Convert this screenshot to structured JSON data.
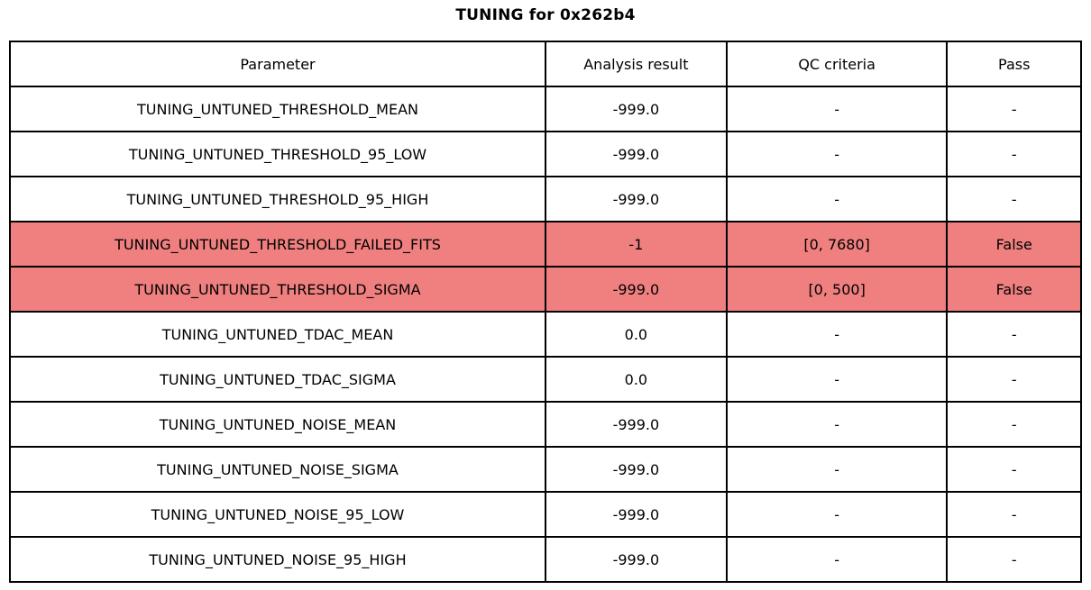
{
  "chart_data": {
    "type": "table",
    "title": "TUNING for 0x262b4",
    "columns": [
      "Parameter",
      "Analysis result",
      "QC criteria",
      "Pass"
    ],
    "rows": [
      {
        "param": "TUNING_UNTUNED_THRESHOLD_MEAN",
        "result": "-999.0",
        "qc": "-",
        "pass": "-",
        "highlight": false
      },
      {
        "param": "TUNING_UNTUNED_THRESHOLD_95_LOW",
        "result": "-999.0",
        "qc": "-",
        "pass": "-",
        "highlight": false
      },
      {
        "param": "TUNING_UNTUNED_THRESHOLD_95_HIGH",
        "result": "-999.0",
        "qc": "-",
        "pass": "-",
        "highlight": false
      },
      {
        "param": "TUNING_UNTUNED_THRESHOLD_FAILED_FITS",
        "result": "-1",
        "qc": "[0, 7680]",
        "pass": "False",
        "highlight": true
      },
      {
        "param": "TUNING_UNTUNED_THRESHOLD_SIGMA",
        "result": "-999.0",
        "qc": "[0, 500]",
        "pass": "False",
        "highlight": true
      },
      {
        "param": "TUNING_UNTUNED_TDAC_MEAN",
        "result": "0.0",
        "qc": "-",
        "pass": "-",
        "highlight": false
      },
      {
        "param": "TUNING_UNTUNED_TDAC_SIGMA",
        "result": "0.0",
        "qc": "-",
        "pass": "-",
        "highlight": false
      },
      {
        "param": "TUNING_UNTUNED_NOISE_MEAN",
        "result": "-999.0",
        "qc": "-",
        "pass": "-",
        "highlight": false
      },
      {
        "param": "TUNING_UNTUNED_NOISE_SIGMA",
        "result": "-999.0",
        "qc": "-",
        "pass": "-",
        "highlight": false
      },
      {
        "param": "TUNING_UNTUNED_NOISE_95_LOW",
        "result": "-999.0",
        "qc": "-",
        "pass": "-",
        "highlight": false
      },
      {
        "param": "TUNING_UNTUNED_NOISE_95_HIGH",
        "result": "-999.0",
        "qc": "-",
        "pass": "-",
        "highlight": false
      }
    ],
    "layout": {
      "legend": "none",
      "grid": "table-borders",
      "highlight_color": "#F08080",
      "border_color": "#000000",
      "background_color": "#FFFFFF"
    }
  }
}
